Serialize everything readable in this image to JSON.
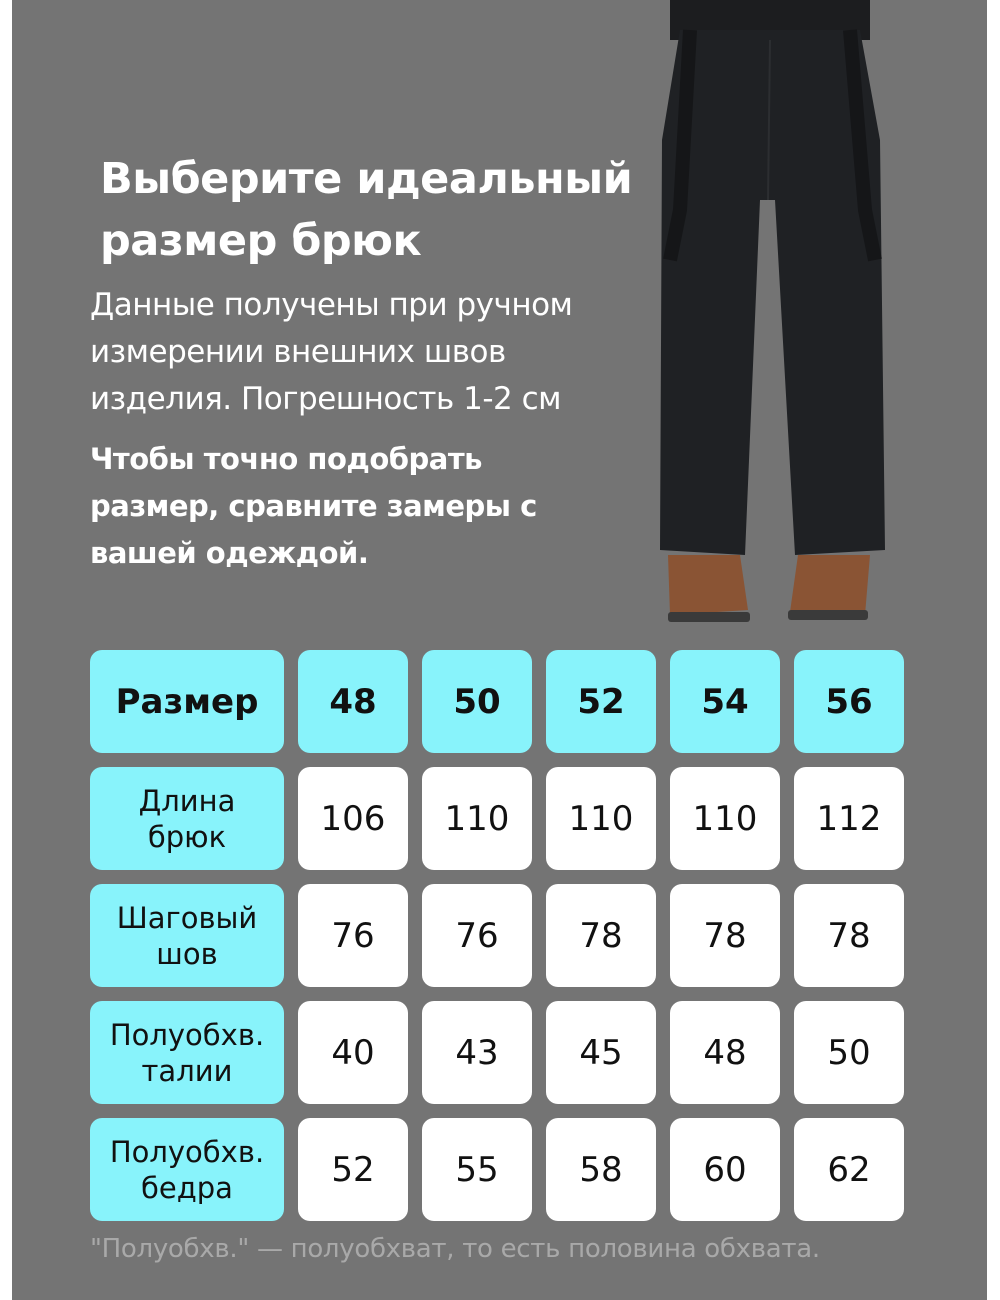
{
  "title": [
    "Выберите идеальный",
    "размер брюк"
  ],
  "subtitle": "Данные получены при ручном измерении внешних швов изделия. Погрешность 1-2 см",
  "emphasis": "Чтобы точно подобрать размер, сравните замеры с вашей одеждой.",
  "colors": {
    "background": "#747474",
    "accent": "#88F3FB",
    "cell": "#ffffff"
  },
  "table": {
    "header_label": "Размер",
    "sizes": [
      "48",
      "50",
      "52",
      "54",
      "56"
    ],
    "rows": [
      {
        "label": [
          "Длина",
          "брюк"
        ],
        "values": [
          "106",
          "110",
          "110",
          "110",
          "112"
        ]
      },
      {
        "label": [
          "Шаговый",
          "шов"
        ],
        "values": [
          "76",
          "76",
          "78",
          "78",
          "78"
        ]
      },
      {
        "label": [
          "Полуобхв.",
          "талии"
        ],
        "values": [
          "40",
          "43",
          "45",
          "48",
          "50"
        ]
      },
      {
        "label": [
          "Полуобхв.",
          "бедра"
        ],
        "values": [
          "52",
          "55",
          "58",
          "60",
          "62"
        ]
      }
    ]
  },
  "footnote": "\"Полуобхв.\" — полуобхват, то есть половина обхвата.",
  "image": "black-ski-pants-with-suspenders-photo"
}
